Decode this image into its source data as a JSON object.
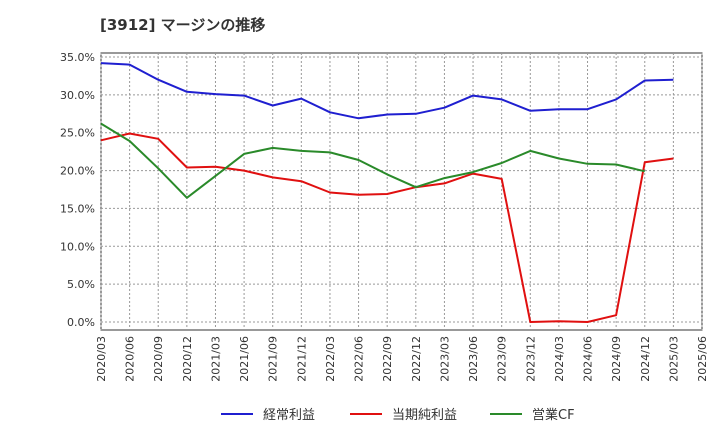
{
  "chart_data": {
    "type": "line",
    "title": "[3912]  マージンの推移",
    "xlabel": "",
    "ylabel": "",
    "ylim": [
      0,
      35
    ],
    "y_ticks": [
      "0.0%",
      "5.0%",
      "10.0%",
      "15.0%",
      "20.0%",
      "25.0%",
      "30.0%",
      "35.0%"
    ],
    "x": [
      "2020/03",
      "2020/06",
      "2020/09",
      "2020/12",
      "2021/03",
      "2021/06",
      "2021/09",
      "2021/12",
      "2022/03",
      "2022/06",
      "2022/09",
      "2022/12",
      "2023/03",
      "2023/06",
      "2023/09",
      "2023/12",
      "2024/03",
      "2024/06",
      "2024/09",
      "2024/12",
      "2025/03",
      "2025/06"
    ],
    "grid": true,
    "legend_position": "bottom",
    "series": [
      {
        "name": "経常利益",
        "color": "#1f1fd0",
        "values": [
          34.2,
          34.0,
          32.0,
          30.4,
          30.1,
          29.9,
          28.6,
          29.5,
          27.7,
          26.9,
          27.4,
          27.5,
          28.3,
          29.9,
          29.4,
          27.9,
          28.1,
          28.1,
          29.4,
          31.9,
          32.0,
          null
        ]
      },
      {
        "name": "当期純利益",
        "color": "#e01010",
        "values": [
          24.0,
          24.9,
          24.2,
          20.4,
          20.5,
          20.0,
          19.1,
          18.6,
          17.1,
          16.8,
          16.9,
          17.8,
          18.3,
          19.6,
          18.9,
          0.0,
          0.1,
          0.0,
          0.9,
          21.1,
          21.6,
          null
        ]
      },
      {
        "name": "営業CF",
        "color": "#2a8a2a",
        "values": [
          26.2,
          23.9,
          20.3,
          16.4,
          19.3,
          22.2,
          23.0,
          22.6,
          22.4,
          21.4,
          19.5,
          17.8,
          19.0,
          19.8,
          21.0,
          22.6,
          21.6,
          20.9,
          20.8,
          19.9,
          null,
          null
        ]
      }
    ]
  }
}
